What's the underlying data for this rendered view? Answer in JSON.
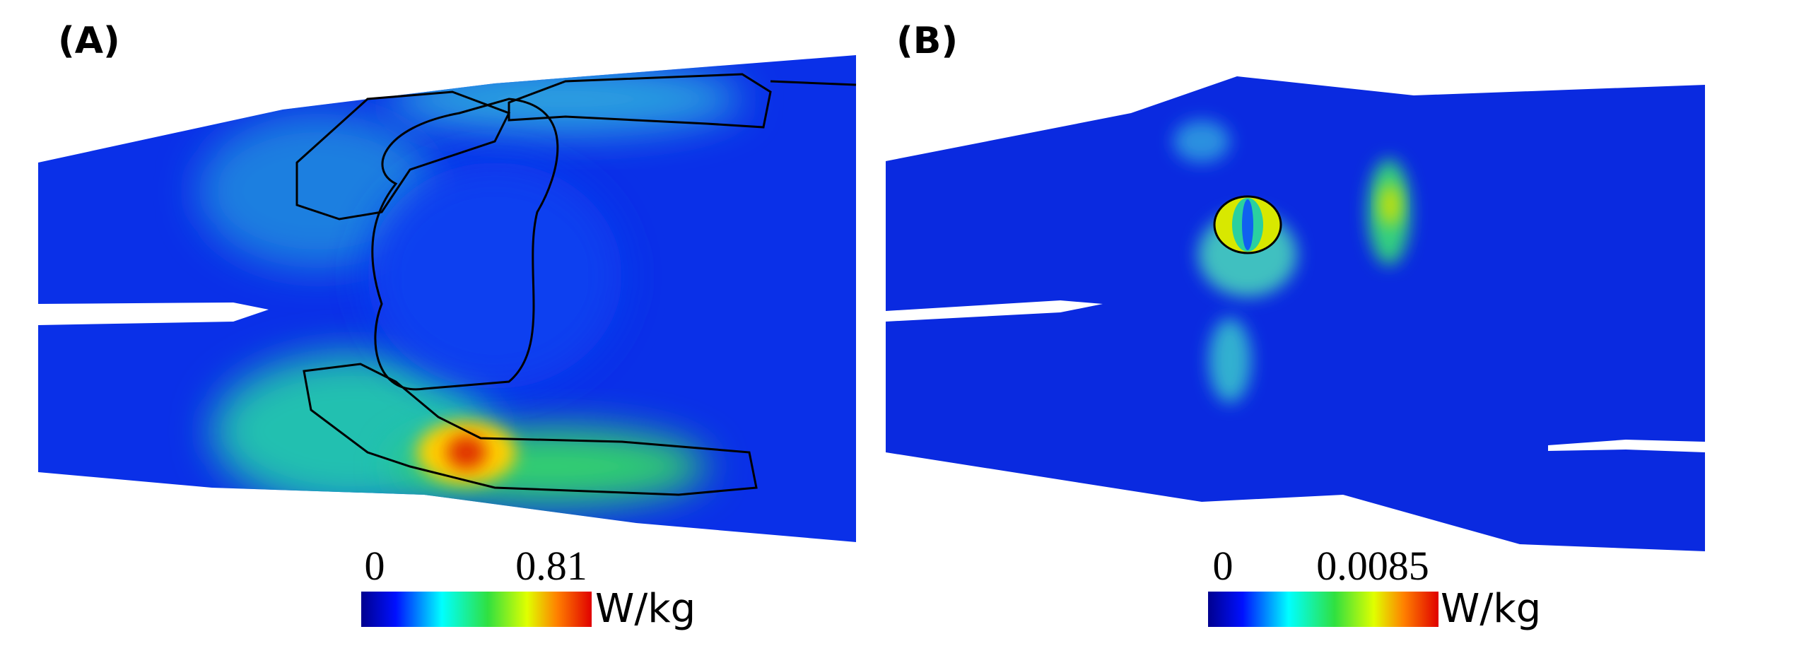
{
  "panels": [
    {
      "label": "(A)",
      "colorbar": {
        "min": "0",
        "max": "0.81",
        "unit": "W/kg"
      }
    },
    {
      "label": "(B)",
      "colorbar": {
        "min": "0",
        "max": "0.0085",
        "unit": "W/kg"
      }
    }
  ]
}
